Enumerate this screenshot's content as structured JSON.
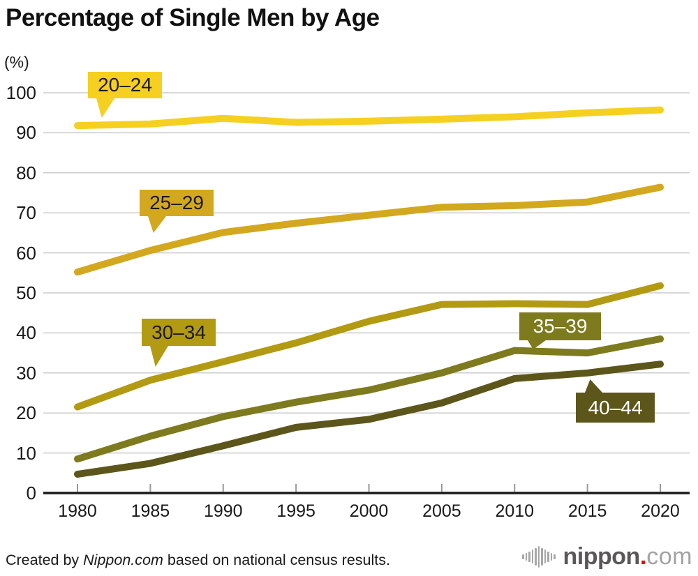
{
  "title": "Percentage of Single Men by Age",
  "y_axis_unit": "(%)",
  "footer": {
    "prefix": "Created by ",
    "brand": "Nippon.com",
    "suffix": " based on national census results."
  },
  "logo": {
    "name_bold": "nippon",
    "dot": ".",
    "name_light": "com",
    "colors": {
      "bold": "#595757",
      "dot": "#e60012",
      "light": "#a3a3a4",
      "icon": "#a7a7a8"
    }
  },
  "chart_data": {
    "type": "line",
    "title": "Percentage of Single Men by Age",
    "xlabel": "",
    "ylabel": "(%)",
    "ylim": [
      0,
      100
    ],
    "grid": "horizontal",
    "legend": "inline-callouts",
    "x": [
      1980,
      1985,
      1990,
      1995,
      2000,
      2005,
      2010,
      2015,
      2020
    ],
    "x_tick_labels": [
      "1980",
      "1985",
      "1990",
      "1995",
      "2000",
      "2005",
      "2010",
      "2015",
      "2020"
    ],
    "y_tick_labels": [
      "0",
      "10",
      "20",
      "30",
      "40",
      "50",
      "60",
      "70",
      "80",
      "90",
      "100"
    ],
    "series": [
      {
        "name": "20–24",
        "color": "#f5d021",
        "label_bg": "#f5d021",
        "label_text": "#1a1a1a",
        "values": [
          91.8,
          92.2,
          93.6,
          92.6,
          92.9,
          93.4,
          94.0,
          95.0,
          95.7
        ]
      },
      {
        "name": "25–29",
        "color": "#d3a81e",
        "label_bg": "#d3a81e",
        "label_text": "#1a1a1a",
        "values": [
          55.2,
          60.6,
          65.1,
          67.4,
          69.4,
          71.4,
          71.8,
          72.7,
          76.4
        ]
      },
      {
        "name": "30–34",
        "color": "#b29a12",
        "label_bg": "#b29a12",
        "label_text": "#1a1a1a",
        "values": [
          21.5,
          28.2,
          32.8,
          37.5,
          42.9,
          47.1,
          47.3,
          47.1,
          51.8
        ]
      },
      {
        "name": "35–39",
        "color": "#7e7a1e",
        "label_bg": "#7e7a1e",
        "label_text": "#ffffff",
        "values": [
          8.5,
          14.2,
          19.1,
          22.7,
          25.7,
          30.0,
          35.6,
          35.0,
          38.5
        ]
      },
      {
        "name": "40–44",
        "color": "#5c561a",
        "label_bg": "#5c561a",
        "label_text": "#ffffff",
        "values": [
          4.7,
          7.4,
          11.8,
          16.4,
          18.4,
          22.5,
          28.6,
          30.0,
          32.2
        ]
      }
    ]
  }
}
